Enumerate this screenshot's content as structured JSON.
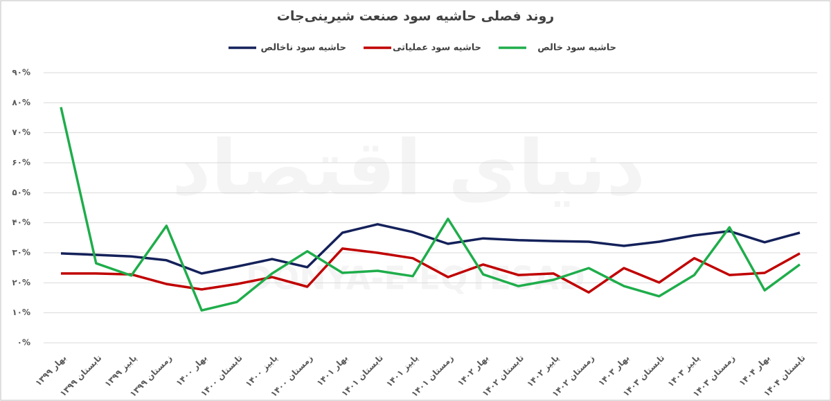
{
  "chart_data": {
    "type": "line",
    "title": "روند فصلی حاشیه سود صنعت شیرینی‌جات",
    "watermark": "دنیای اقتصاد",
    "watermark_latin": "DONYA-E-EQTESAD",
    "categories": [
      "بهار ۱۳۹۹",
      "تابستان ۱۳۹۹",
      "پاییز ۱۳۹۹",
      "زمستان ۱۳۹۹",
      "بهار ۱۴۰۰",
      "تابستان ۱۴۰۰",
      "پاییز ۱۴۰۰",
      "زمستان ۱۴۰۰",
      "بهار ۱۴۰۱",
      "تابستان ۱۴۰۱",
      "پاییز ۱۴۰۱",
      "زمستان ۱۴۰۱",
      "بهار ۱۴۰۲",
      "تابستان ۱۴۰۲",
      "پاییز ۱۴۰۲",
      "زمستان ۱۴۰۲",
      "بهار ۱۴۰۳",
      "تابستان ۱۴۰۳",
      "پاییز ۱۴۰۳",
      "زمستان ۱۴۰۳",
      "بهار ۱۴۰۴",
      "تابستان ۱۴۰۴"
    ],
    "series": [
      {
        "name": "حاشیه سود ناخالص",
        "color": "#14215a",
        "values": [
          29.8,
          29.3,
          28.8,
          27.5,
          23.1,
          25.4,
          27.9,
          25.2,
          36.7,
          39.5,
          36.9,
          33.0,
          34.8,
          34.2,
          33.9,
          33.7,
          32.3,
          33.7,
          35.8,
          37.2,
          33.5,
          36.7
        ]
      },
      {
        "name": "حاشیه سود عملیاتی",
        "color": "#c00000",
        "values": [
          23.1,
          23.1,
          22.8,
          19.6,
          17.8,
          19.6,
          21.9,
          18.7,
          31.4,
          30.0,
          28.2,
          21.9,
          26.1,
          22.6,
          23.1,
          16.8,
          24.9,
          20.1,
          28.2,
          22.6,
          23.3,
          29.8
        ]
      },
      {
        "name": "حاشیه سود خالص",
        "color": "#1fad4b",
        "values": [
          78.5,
          26.5,
          22.4,
          39.0,
          10.8,
          13.6,
          23.1,
          30.5,
          23.3,
          24.0,
          22.2,
          41.3,
          22.8,
          18.9,
          21.0,
          24.9,
          18.9,
          15.5,
          22.6,
          38.5,
          17.5,
          26.1
        ]
      }
    ],
    "ylim": [
      0,
      90
    ],
    "yticks": [
      {
        "value": 0,
        "label": "۰%"
      },
      {
        "value": 10,
        "label": "۱۰%"
      },
      {
        "value": 20,
        "label": "۲۰%"
      },
      {
        "value": 30,
        "label": "۳۰%"
      },
      {
        "value": 40,
        "label": "۴۰%"
      },
      {
        "value": 50,
        "label": "۵۰%"
      },
      {
        "value": 60,
        "label": "۶۰%"
      },
      {
        "value": 70,
        "label": "۷۰%"
      },
      {
        "value": 80,
        "label": "۸۰%"
      },
      {
        "value": 90,
        "label": "۹۰%"
      }
    ],
    "grid": true,
    "legend": "top"
  }
}
